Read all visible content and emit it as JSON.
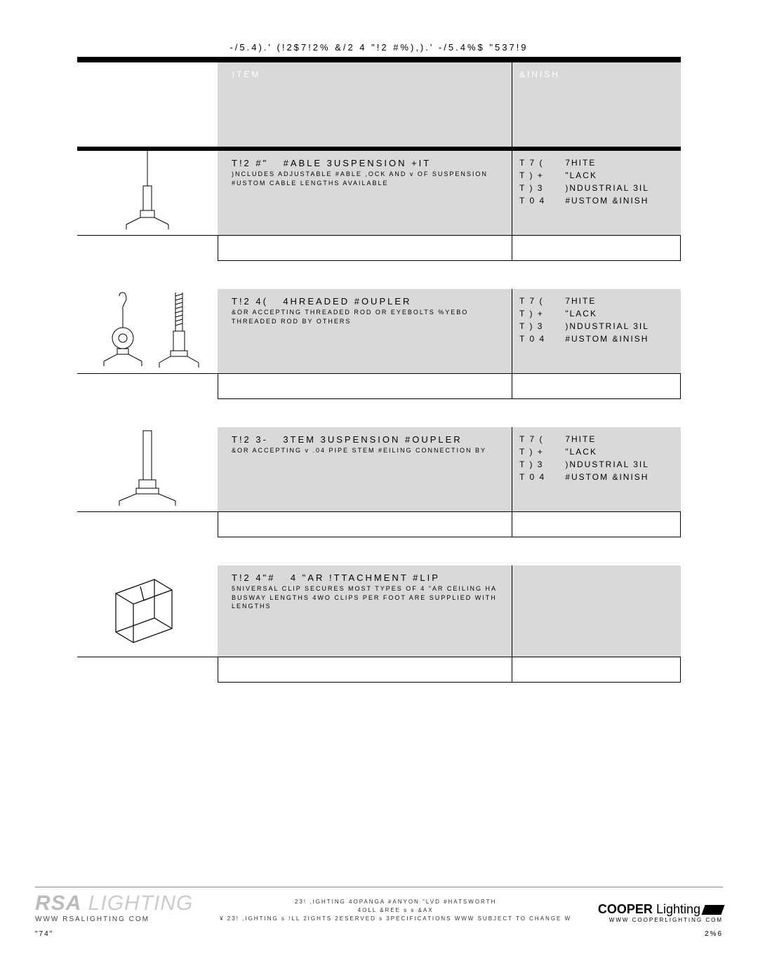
{
  "page_title": "-/5.4).' (!2$7!2% &/2 4 \"!2 #%),).' -/5.4%$ \"537!9",
  "headers": {
    "item": ")TEM",
    "finish": "&INISH"
  },
  "finishes_full": [
    {
      "code": "T 7 (",
      "label": "7HITE"
    },
    {
      "code": "T ) +",
      "label": "\"LACK"
    },
    {
      "code": "T ) 3",
      "label": ")NDUSTRIAL 3IL"
    },
    {
      "code": "T 0 4",
      "label": "#USTOM &INISH"
    }
  ],
  "products": [
    {
      "code": "T!2  #\"",
      "title": "#ABLE 3USPENSION +IT",
      "desc": ")NCLUDES ADJUSTABLE #ABLE ,OCK AND   v OF SUSPENSION\n#USTOM CABLE LENGTHS AVAILABLE",
      "extra_overlay": "",
      "has_finish": true,
      "svg": "cable"
    },
    {
      "code": "T!2  4(",
      "title": "4HREADED #OUPLER",
      "desc": "&OR ACCEPTING      THREADED ROD OR EYEBOLTS %YEBO\n THREADED ROD BY OTHERS",
      "has_finish": true,
      "svg": "threaded"
    },
    {
      "code": "T!2  3-",
      "title": "3TEM 3USPENSION #OUPLER",
      "desc": "&OR ACCEPTING  v .04 PIPE STEM  #EILING CONNECTION BY",
      "has_finish": true,
      "svg": "stem"
    },
    {
      "code": "T!2  4\"#",
      "title": "4 \"AR !TTACHMENT #LIP",
      "desc": "5NIVERSAL CLIP SECURES MOST TYPES OF 4 \"AR CEILING HA\nBUSWAY LENGTHS  4WO CLIPS PER FOOT ARE SUPPLIED WITH\nLENGTHS",
      "has_finish": false,
      "svg": "clip"
    }
  ],
  "footer": {
    "rsa": "RSA",
    "rsa_lighting": " LIGHTING",
    "rsa_url": "WWW RSALIGHTING COM",
    "mid1": "23! ,IGHTING      4OPANGA #ANYON \"LVD  #HATSWORTH",
    "mid2": "4OLL &REE             s             s &AX",
    "mid3": "¥    23! ,IGHTING s !LL 2IGHTS 2ESERVED s 3PECIFICATIONS WWW SUBJECT TO CHANGE W",
    "cooper": "COOPER",
    "cooper_lighting": " Lighting",
    "cooper_sub": "WWW COOPERLIGHTING COM",
    "page_left": "\"74\"",
    "page_right": "2%6"
  }
}
